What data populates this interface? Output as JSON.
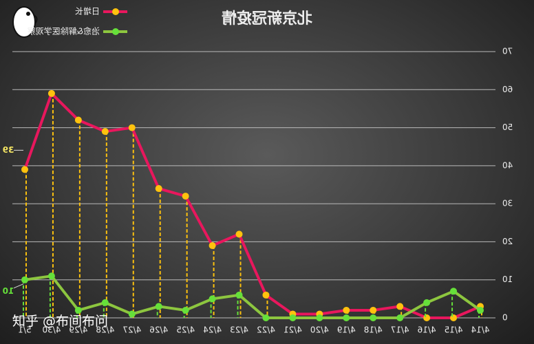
{
  "chart_data": {
    "type": "line",
    "title": "北京新冠疫情",
    "categories": [
      "4/14",
      "4/15",
      "4/16",
      "4/17",
      "4/18",
      "4/19",
      "4/20",
      "4/21",
      "4/22",
      "4/23",
      "4/24",
      "4/25",
      "4/26",
      "4/27",
      "4/28",
      "4/29",
      "4/30",
      "5/1"
    ],
    "series": [
      {
        "name": "日增长",
        "color": "#e8175d",
        "marker_color": "#ffc20e",
        "values": [
          3,
          0,
          0,
          3,
          2,
          2,
          1,
          1,
          6,
          22,
          19,
          32,
          34,
          50,
          49,
          52,
          59,
          39
        ]
      },
      {
        "name": "治愈&解除医学观察",
        "color": "#8dc63f",
        "marker_color": "#66e03a",
        "values": [
          2,
          7,
          4,
          0,
          0,
          0,
          0,
          0,
          0,
          6,
          5,
          2,
          3,
          1,
          4,
          2,
          11,
          10
        ]
      }
    ],
    "ylim": [
      0,
      70
    ],
    "yticks": [
      0,
      10,
      20,
      30,
      40,
      50,
      60,
      70
    ],
    "grid": true,
    "mirrored": true
  },
  "watermark": "知乎 @布间布问"
}
